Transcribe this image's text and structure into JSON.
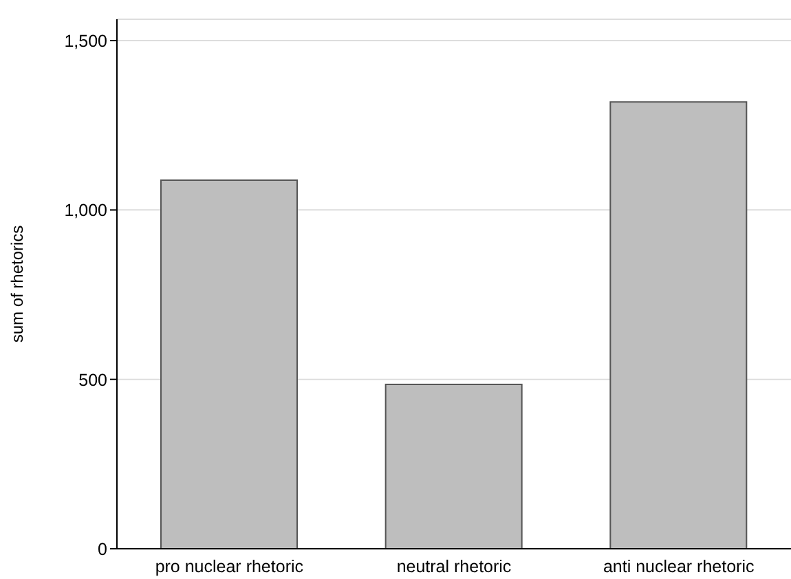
{
  "chart_data": {
    "type": "bar",
    "ylabel": "sum of rhetorics",
    "categories": [
      "pro nuclear rhetoric",
      "neutral rhetoric",
      "anti nuclear rhetoric"
    ],
    "values": [
      1088,
      485,
      1319
    ],
    "color": "#bebebe",
    "ylim": [
      0,
      1563
    ],
    "yticks": [
      0,
      {
        "value": 500,
        "label": "500"
      },
      {
        "value": 1000,
        "label": "1,000"
      },
      {
        "value": 1500,
        "label": "1,500"
      }
    ],
    "grid": "y"
  }
}
